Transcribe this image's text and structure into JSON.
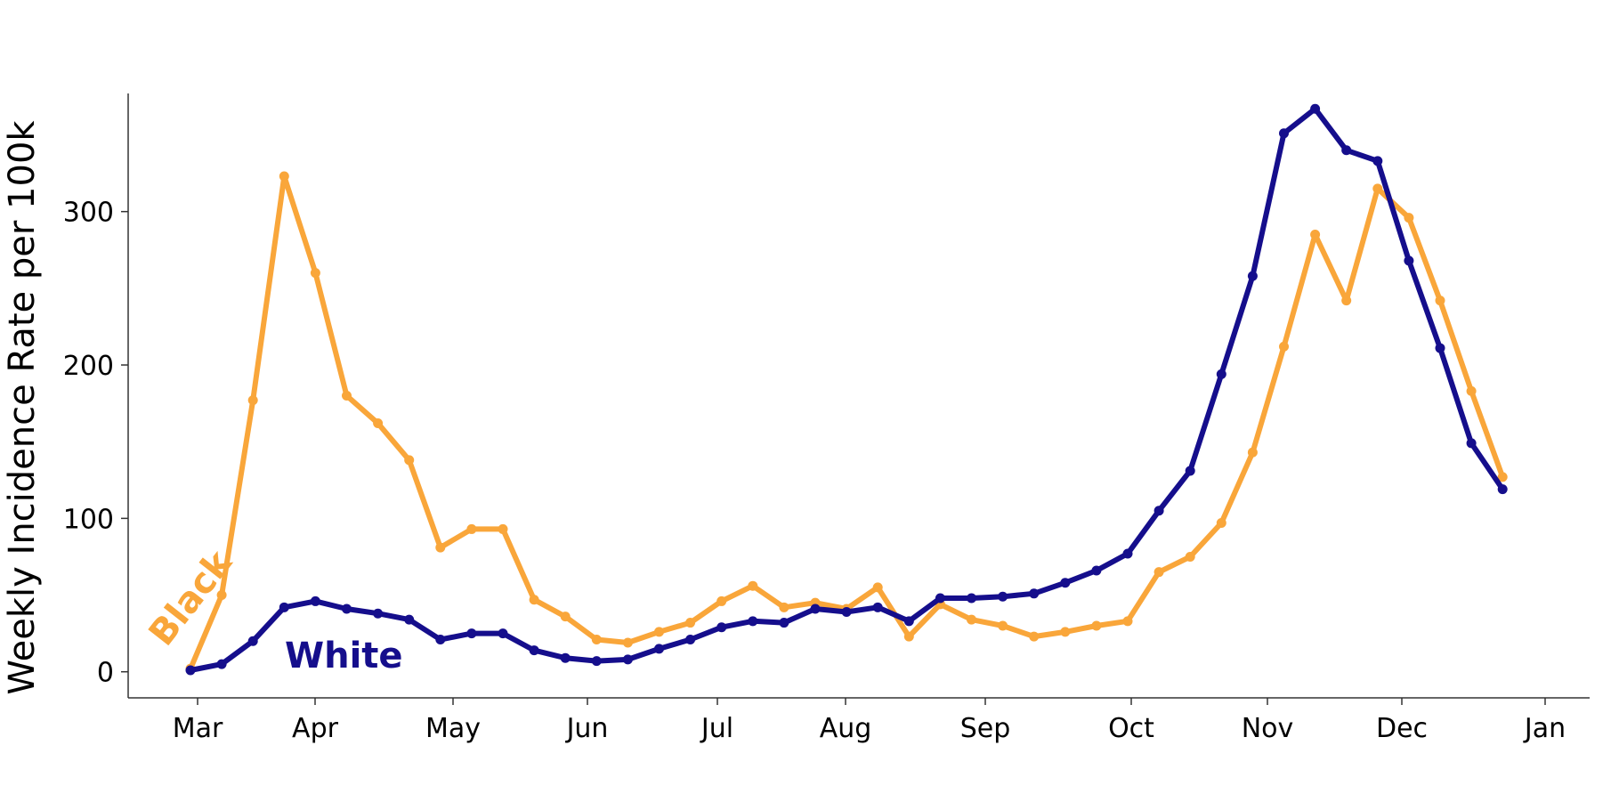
{
  "chart_data": {
    "type": "line",
    "title": "",
    "xlabel": "",
    "ylabel": "Weekly Incidence Rate per 100k",
    "x_tick_labels": [
      "Mar",
      "Apr",
      "May",
      "Jun",
      "Jul",
      "Aug",
      "Sep",
      "Oct",
      "Nov",
      "Dec",
      "Jan"
    ],
    "y_ticks": [
      0,
      100,
      200,
      300
    ],
    "ylim": [
      -17,
      377
    ],
    "grid": false,
    "legend": "direct labels on lines, bottom-left",
    "x": [
      "Mar 12",
      "Mar 19",
      "Mar 26",
      "Apr 2",
      "Apr 9",
      "Apr 16",
      "Apr 23",
      "Apr 30",
      "May 7",
      "May 14",
      "May 21",
      "May 28",
      "Jun 4",
      "Jun 11",
      "Jun 18",
      "Jun 25",
      "Jul 2",
      "Jul 9",
      "Jul 16",
      "Jul 23",
      "Jul 30",
      "Aug 6",
      "Aug 13",
      "Aug 20",
      "Aug 27",
      "Sep 3",
      "Sep 10",
      "Sep 17",
      "Sep 24",
      "Oct 1",
      "Oct 8",
      "Oct 15",
      "Oct 22",
      "Oct 29",
      "Nov 5",
      "Nov 12",
      "Nov 19",
      "Nov 26",
      "Dec 3",
      "Dec 10",
      "Dec 17",
      "Dec 24",
      "Dec 31"
    ],
    "series": [
      {
        "name": "Black",
        "color": "#F9A63A",
        "values": [
          2,
          50,
          177,
          323,
          260,
          180,
          162,
          138,
          81,
          93,
          93,
          47,
          36,
          21,
          19,
          26,
          32,
          46,
          56,
          42,
          45,
          41,
          55,
          23,
          44,
          34,
          30,
          23,
          26,
          30,
          33,
          65,
          75,
          97,
          143,
          212,
          285,
          242,
          315,
          296,
          242,
          183,
          127
        ]
      },
      {
        "name": "White",
        "color": "#150E8C",
        "values": [
          1,
          5,
          20,
          42,
          46,
          41,
          38,
          34,
          21,
          25,
          25,
          14,
          9,
          7,
          8,
          15,
          21,
          29,
          33,
          32,
          41,
          39,
          42,
          33,
          48,
          48,
          49,
          51,
          58,
          66,
          77,
          105,
          131,
          194,
          258,
          351,
          367,
          340,
          333,
          268,
          211,
          149,
          119
        ]
      }
    ]
  }
}
